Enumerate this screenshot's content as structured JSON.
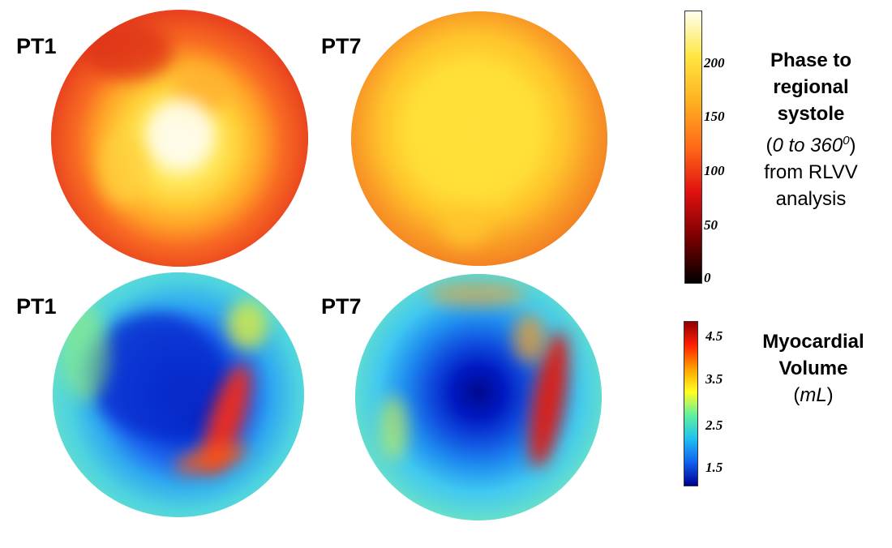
{
  "panels": {
    "top_left_label": "PT1",
    "top_right_label": "PT7",
    "bottom_left_label": "PT1",
    "bottom_right_label": "PT7"
  },
  "phase_colorbar": {
    "ticks": [
      "200",
      "150",
      "100",
      "50",
      "0"
    ],
    "colors": [
      "#fffff0",
      "#ffe640",
      "#ffb020",
      "#ff6a18",
      "#e01010",
      "#7a0000",
      "#000000"
    ],
    "title": "Phase to regional systole",
    "range_open": "(",
    "range_text": "0 to 360",
    "range_sup": "0",
    "range_close": ")",
    "source": "from RLVV analysis"
  },
  "volume_colorbar": {
    "ticks": [
      "4.5",
      "3.5",
      "2.5",
      "1.5"
    ],
    "colors": [
      "#900000",
      "#ff2000",
      "#ffa000",
      "#ffff20",
      "#60f0a0",
      "#20c0f0",
      "#1060f0",
      "#00008f"
    ],
    "title": "Myocardial Volume",
    "unit_open": "(",
    "unit": "mL",
    "unit_close": ")"
  }
}
